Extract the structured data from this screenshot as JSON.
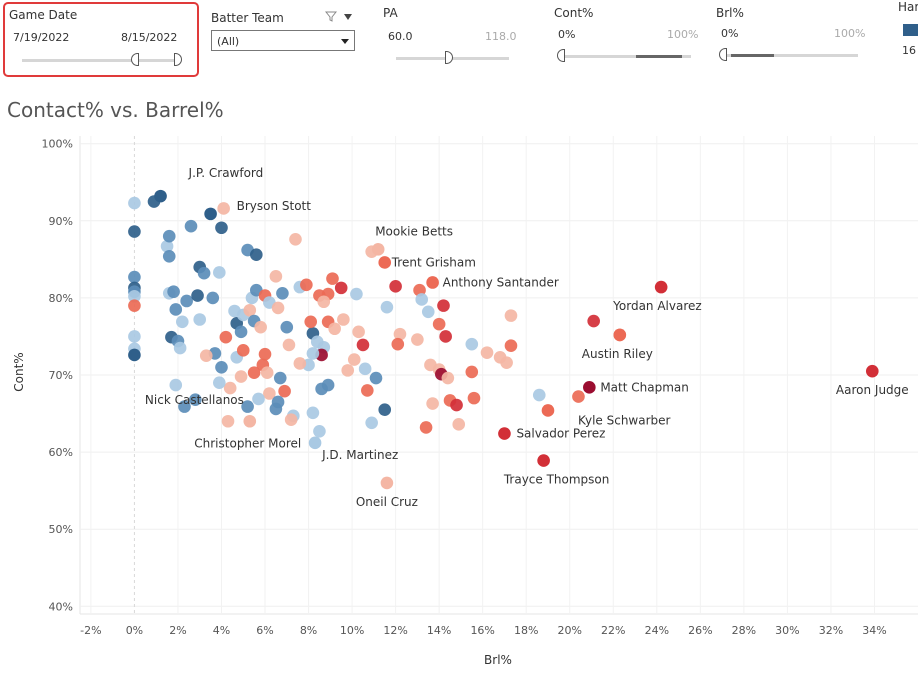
{
  "filters": {
    "game_date": {
      "title": "Game Date",
      "start": "7/19/2022",
      "end": "8/15/2022"
    },
    "batter_team": {
      "title": "Batter Team",
      "selected": "(All)"
    },
    "pa": {
      "title": "PA",
      "min": "60.0",
      "max": "118.0"
    },
    "cont": {
      "title": "Cont%",
      "min": "0%",
      "max": "100%"
    },
    "brl": {
      "title": "Brl%",
      "min": "0%",
      "max": "100%"
    },
    "hard": {
      "title": "Har",
      "value": "16"
    }
  },
  "colors": {
    "blue_dark": "#2f5f8a",
    "blue_mid": "#5b8db8",
    "blue_light": "#a9c9e3",
    "red_light": "#f4b6a4",
    "red_mid": "#ec6a55",
    "red_dark": "#d22f37",
    "red_deep": "#9b0d30"
  },
  "chart_data": {
    "type": "scatter",
    "title": "Contact% vs. Barrel%",
    "xlabel": "Brl%",
    "ylabel": "Cont%",
    "xlim": [
      -2.5,
      36
    ],
    "ylim": [
      39,
      101
    ],
    "x_ticks": [
      -2,
      0,
      2,
      4,
      6,
      8,
      10,
      12,
      14,
      16,
      18,
      20,
      22,
      24,
      26,
      28,
      30,
      32,
      34
    ],
    "x_tick_labels": [
      "-2%",
      "0%",
      "2%",
      "4%",
      "6%",
      "8%",
      "10%",
      "12%",
      "14%",
      "16%",
      "18%",
      "20%",
      "22%",
      "24%",
      "26%",
      "28%",
      "30%",
      "32%",
      "34%"
    ],
    "y_ticks": [
      40,
      50,
      60,
      70,
      80,
      90,
      100
    ],
    "y_tick_labels": [
      "40%",
      "50%",
      "60%",
      "70%",
      "80%",
      "90%",
      "100%"
    ],
    "labeled_points": [
      {
        "name": "J.P. Crawford",
        "brl": 1.2,
        "cont": 93.2,
        "color": "#2f5f8a"
      },
      {
        "name": "Bryson Stott",
        "brl": 3.5,
        "cont": 90.9,
        "color": "#2f5f8a"
      },
      {
        "name": "Mookie Betts",
        "brl": 11.2,
        "cont": 86.3,
        "color": "#f4b6a4"
      },
      {
        "name": "Trent Grisham",
        "brl": 11.5,
        "cont": 84.6,
        "color": "#ec6a55"
      },
      {
        "name": "Anthony Santander",
        "brl": 13.7,
        "cont": 82.0,
        "color": "#ec6a55"
      },
      {
        "name": "Yordan Alvarez",
        "brl": 24.2,
        "cont": 81.4,
        "color": "#d22f37"
      },
      {
        "name": "Austin Riley",
        "brl": 22.3,
        "cont": 75.2,
        "color": "#ec6a55"
      },
      {
        "name": "Matt Chapman",
        "brl": 20.9,
        "cont": 68.4,
        "color": "#9b0d30"
      },
      {
        "name": "Aaron Judge",
        "brl": 33.9,
        "cont": 70.5,
        "color": "#d22f37"
      },
      {
        "name": "Kyle Schwarber",
        "brl": 19.0,
        "cont": 65.4,
        "color": "#ec6a55"
      },
      {
        "name": "Salvador Perez",
        "brl": 17.0,
        "cont": 62.4,
        "color": "#d22f37"
      },
      {
        "name": "Trayce Thompson",
        "brl": 18.8,
        "cont": 58.9,
        "color": "#d22f37"
      },
      {
        "name": "Oneil Cruz",
        "brl": 11.6,
        "cont": 56.0,
        "color": "#f4b6a4"
      },
      {
        "name": "J.D. Martinez",
        "brl": 8.3,
        "cont": 61.2,
        "color": "#a9c9e3"
      },
      {
        "name": "Christopher Morel",
        "brl": 5.3,
        "cont": 64.0,
        "color": "#f4b6a4"
      },
      {
        "name": "Nick Castellanos",
        "brl": 0.0,
        "cont": 72.6,
        "color": "#2f5f8a"
      }
    ],
    "points": [
      [
        0,
        92.3,
        "#a9c9e3"
      ],
      [
        0,
        88.6,
        "#2f5f8a"
      ],
      [
        0,
        82.7,
        "#5b8db8"
      ],
      [
        0,
        81.3,
        "#2f5f8a"
      ],
      [
        0,
        80.8,
        "#5b8db8"
      ],
      [
        0,
        80.2,
        "#a9c9e3"
      ],
      [
        0,
        79.0,
        "#ec6a55"
      ],
      [
        0,
        75.0,
        "#a9c9e3"
      ],
      [
        0,
        73.4,
        "#a9c9e3"
      ],
      [
        0.9,
        92.5,
        "#2f5f8a"
      ],
      [
        1.5,
        86.7,
        "#a9c9e3"
      ],
      [
        1.6,
        85.4,
        "#5b8db8"
      ],
      [
        1.6,
        88.0,
        "#5b8db8"
      ],
      [
        1.6,
        80.6,
        "#a9c9e3"
      ],
      [
        1.8,
        80.8,
        "#5b8db8"
      ],
      [
        1.9,
        78.5,
        "#5b8db8"
      ],
      [
        1.7,
        74.9,
        "#2f5f8a"
      ],
      [
        2.0,
        74.4,
        "#5b8db8"
      ],
      [
        2.1,
        73.5,
        "#a9c9e3"
      ],
      [
        1.9,
        68.7,
        "#a9c9e3"
      ],
      [
        2.4,
        79.6,
        "#5b8db8"
      ],
      [
        2.6,
        89.3,
        "#5b8db8"
      ],
      [
        2.9,
        80.3,
        "#2f5f8a"
      ],
      [
        3.0,
        84.0,
        "#2f5f8a"
      ],
      [
        3.2,
        83.2,
        "#5b8db8"
      ],
      [
        3.6,
        80.0,
        "#5b8db8"
      ],
      [
        3.9,
        83.3,
        "#a9c9e3"
      ],
      [
        4.0,
        89.1,
        "#2f5f8a"
      ],
      [
        4.1,
        91.6,
        "#f4b6a4"
      ],
      [
        3.7,
        72.8,
        "#5b8db8"
      ],
      [
        3.3,
        72.5,
        "#f4b6a4"
      ],
      [
        2.8,
        66.8,
        "#5b8db8"
      ],
      [
        4.2,
        74.9,
        "#ec6a55"
      ],
      [
        4.6,
        78.3,
        "#a9c9e3"
      ],
      [
        4.7,
        76.7,
        "#2f5f8a"
      ],
      [
        4.9,
        75.6,
        "#5b8db8"
      ],
      [
        5.0,
        77.8,
        "#a9c9e3"
      ],
      [
        5.3,
        78.4,
        "#f4b6a4"
      ],
      [
        5.5,
        77.0,
        "#5b8db8"
      ],
      [
        5.8,
        76.2,
        "#f4b6a4"
      ],
      [
        5.4,
        80.0,
        "#a9c9e3"
      ],
      [
        5.6,
        81.0,
        "#5b8db8"
      ],
      [
        5.2,
        86.2,
        "#5b8db8"
      ],
      [
        5.6,
        85.6,
        "#2f5f8a"
      ],
      [
        6.0,
        80.3,
        "#ec6a55"
      ],
      [
        6.2,
        79.4,
        "#a9c9e3"
      ],
      [
        6.6,
        78.7,
        "#f4b6a4"
      ],
      [
        6.5,
        82.8,
        "#f4b6a4"
      ],
      [
        6.8,
        80.6,
        "#5b8db8"
      ],
      [
        7.0,
        76.2,
        "#5b8db8"
      ],
      [
        7.4,
        87.6,
        "#f4b6a4"
      ],
      [
        7.6,
        81.4,
        "#a9c9e3"
      ],
      [
        7.9,
        81.7,
        "#ec6a55"
      ],
      [
        8.2,
        75.4,
        "#2f5f8a"
      ],
      [
        8.1,
        76.9,
        "#ec6a55"
      ],
      [
        8.5,
        80.3,
        "#ec6a55"
      ],
      [
        8.9,
        80.5,
        "#ec6a55"
      ],
      [
        9.1,
        82.5,
        "#ec6a55"
      ],
      [
        9.5,
        81.3,
        "#d22f37"
      ],
      [
        8.7,
        79.5,
        "#f4b6a4"
      ],
      [
        8.9,
        76.9,
        "#ec6a55"
      ],
      [
        9.2,
        76.0,
        "#f4b6a4"
      ],
      [
        9.6,
        77.2,
        "#f4b6a4"
      ],
      [
        8.4,
        74.3,
        "#a9c9e3"
      ],
      [
        8.7,
        73.6,
        "#a9c9e3"
      ],
      [
        8.6,
        72.6,
        "#9b0d30"
      ],
      [
        8.2,
        72.8,
        "#a9c9e3"
      ],
      [
        8.0,
        71.3,
        "#a9c9e3"
      ],
      [
        10.2,
        80.5,
        "#a9c9e3"
      ],
      [
        10.3,
        75.6,
        "#f4b6a4"
      ],
      [
        10.5,
        73.9,
        "#d22f37"
      ],
      [
        10.1,
        72.0,
        "#f4b6a4"
      ],
      [
        9.8,
        70.6,
        "#f4b6a4"
      ],
      [
        10.6,
        70.8,
        "#a9c9e3"
      ],
      [
        11.1,
        69.6,
        "#5b8db8"
      ],
      [
        10.7,
        68.0,
        "#ec6a55"
      ],
      [
        10.9,
        63.8,
        "#a9c9e3"
      ],
      [
        11.5,
        65.5,
        "#2f5f8a"
      ],
      [
        12.2,
        75.3,
        "#f4b6a4"
      ],
      [
        12.1,
        74.0,
        "#ec6a55"
      ],
      [
        11.6,
        78.8,
        "#a9c9e3"
      ],
      [
        12.0,
        81.5,
        "#d22f37"
      ],
      [
        10.9,
        86.0,
        "#f4b6a4"
      ],
      [
        13.1,
        81.0,
        "#ec6a55"
      ],
      [
        13.5,
        78.2,
        "#a9c9e3"
      ],
      [
        14.0,
        76.6,
        "#ec6a55"
      ],
      [
        14.2,
        79.0,
        "#d22f37"
      ],
      [
        13.2,
        79.8,
        "#a9c9e3"
      ],
      [
        13.0,
        74.6,
        "#f4b6a4"
      ],
      [
        13.6,
        71.3,
        "#f4b6a4"
      ],
      [
        14.3,
        75.0,
        "#d22f37"
      ],
      [
        14.0,
        70.7,
        "#f4b6a4"
      ],
      [
        14.1,
        70.1,
        "#9b0d30"
      ],
      [
        13.7,
        66.3,
        "#f4b6a4"
      ],
      [
        14.5,
        66.7,
        "#ec6a55"
      ],
      [
        14.8,
        66.1,
        "#d22f37"
      ],
      [
        14.4,
        69.6,
        "#f4b6a4"
      ],
      [
        15.5,
        70.4,
        "#ec6a55"
      ],
      [
        15.5,
        74.0,
        "#a9c9e3"
      ],
      [
        16.2,
        72.9,
        "#f4b6a4"
      ],
      [
        16.8,
        72.3,
        "#f4b6a4"
      ],
      [
        17.1,
        71.6,
        "#f4b6a4"
      ],
      [
        17.3,
        73.8,
        "#ec6a55"
      ],
      [
        17.3,
        77.7,
        "#f4b6a4"
      ],
      [
        15.6,
        67.0,
        "#ec6a55"
      ],
      [
        14.9,
        63.6,
        "#f4b6a4"
      ],
      [
        13.4,
        63.2,
        "#ec6a55"
      ],
      [
        18.6,
        67.4,
        "#a9c9e3"
      ],
      [
        20.4,
        67.2,
        "#ec6a55"
      ],
      [
        21.1,
        77.0,
        "#d22f37"
      ],
      [
        22.3,
        75.2,
        "#ec6a55"
      ],
      [
        6.0,
        72.7,
        "#ec6a55"
      ],
      [
        5.9,
        71.3,
        "#ec6a55"
      ],
      [
        6.1,
        70.3,
        "#f4b6a4"
      ],
      [
        5.5,
        70.3,
        "#ec6a55"
      ],
      [
        4.9,
        69.8,
        "#f4b6a4"
      ],
      [
        6.7,
        69.6,
        "#5b8db8"
      ],
      [
        6.9,
        67.9,
        "#ec6a55"
      ],
      [
        6.2,
        67.6,
        "#f4b6a4"
      ],
      [
        6.6,
        66.5,
        "#5b8db8"
      ],
      [
        5.7,
        66.9,
        "#a9c9e3"
      ],
      [
        5.2,
        65.9,
        "#5b8db8"
      ],
      [
        6.5,
        65.6,
        "#5b8db8"
      ],
      [
        7.3,
        64.7,
        "#a9c9e3"
      ],
      [
        8.2,
        65.1,
        "#a9c9e3"
      ],
      [
        8.6,
        68.2,
        "#5b8db8"
      ],
      [
        8.9,
        68.7,
        "#5b8db8"
      ],
      [
        7.6,
        71.5,
        "#f4b6a4"
      ],
      [
        7.1,
        73.9,
        "#f4b6a4"
      ],
      [
        4.4,
        68.3,
        "#f4b6a4"
      ],
      [
        4.0,
        71.0,
        "#5b8db8"
      ],
      [
        4.7,
        72.3,
        "#a9c9e3"
      ],
      [
        4.3,
        64.0,
        "#f4b6a4"
      ],
      [
        3.0,
        77.2,
        "#a9c9e3"
      ],
      [
        2.2,
        76.9,
        "#a9c9e3"
      ],
      [
        7.2,
        64.2,
        "#f4b6a4"
      ],
      [
        8.5,
        62.7,
        "#a9c9e3"
      ],
      [
        2.3,
        65.9,
        "#5b8db8"
      ],
      [
        3.9,
        69.0,
        "#a9c9e3"
      ],
      [
        5.0,
        73.2,
        "#ec6a55"
      ]
    ]
  }
}
